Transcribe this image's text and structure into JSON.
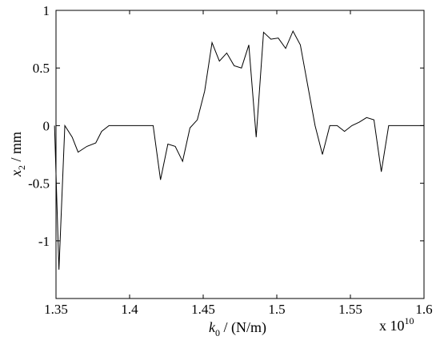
{
  "chart_data": {
    "type": "line",
    "xlabel": {
      "symbol": "k",
      "sub": "0",
      "rest": " / (N/m)"
    },
    "ylabel": {
      "symbol": "x",
      "sub": "2",
      "rest": " / mm"
    },
    "xlim": [
      1.35,
      1.6
    ],
    "ylim": [
      -1.5,
      1
    ],
    "x_multiplier_label": {
      "base": "x 10",
      "exp": "10"
    },
    "xticks": [
      1.35,
      1.4,
      1.45,
      1.5,
      1.55,
      1.6
    ],
    "xtick_labels": [
      "1.35",
      "1.4",
      "1.45",
      "1.5",
      "1.55",
      "1.6"
    ],
    "yticks": [
      -1.5,
      -1,
      -0.5,
      0,
      0.5,
      1
    ],
    "ytick_labels": [
      "",
      "-1",
      "-0.5",
      "0",
      "0.5",
      "1"
    ],
    "grid": false,
    "series": [
      {
        "x": [
          1.349,
          1.352,
          1.356,
          1.361,
          1.365,
          1.371,
          1.377,
          1.381,
          1.386,
          1.391,
          1.396,
          1.401,
          1.406,
          1.411,
          1.416,
          1.421,
          1.426,
          1.431,
          1.436,
          1.441,
          1.446,
          1.451,
          1.456,
          1.461,
          1.466,
          1.471,
          1.476,
          1.481,
          1.486,
          1.491,
          1.496,
          1.501,
          1.506,
          1.511,
          1.516,
          1.521,
          1.526,
          1.531,
          1.536,
          1.541,
          1.546,
          1.551,
          1.556,
          1.561,
          1.566,
          1.571,
          1.576,
          1.581,
          1.586,
          1.591,
          1.596,
          1.6
        ],
        "values": [
          0.0,
          -1.25,
          0.0,
          -0.1,
          -0.23,
          -0.18,
          -0.15,
          -0.05,
          0.0,
          0.0,
          0.0,
          0.0,
          0.0,
          0.0,
          0.0,
          -0.47,
          -0.16,
          -0.18,
          -0.31,
          -0.02,
          0.05,
          0.3,
          0.72,
          0.56,
          0.63,
          0.52,
          0.5,
          0.7,
          -0.1,
          0.81,
          0.75,
          0.76,
          0.67,
          0.82,
          0.7,
          0.35,
          0.0,
          -0.25,
          0.0,
          0.0,
          -0.05,
          0.0,
          0.03,
          0.07,
          0.05,
          -0.4,
          0.0,
          0.0,
          0.0,
          0.0,
          0.0,
          0.0
        ],
        "color": "#000000"
      }
    ]
  }
}
